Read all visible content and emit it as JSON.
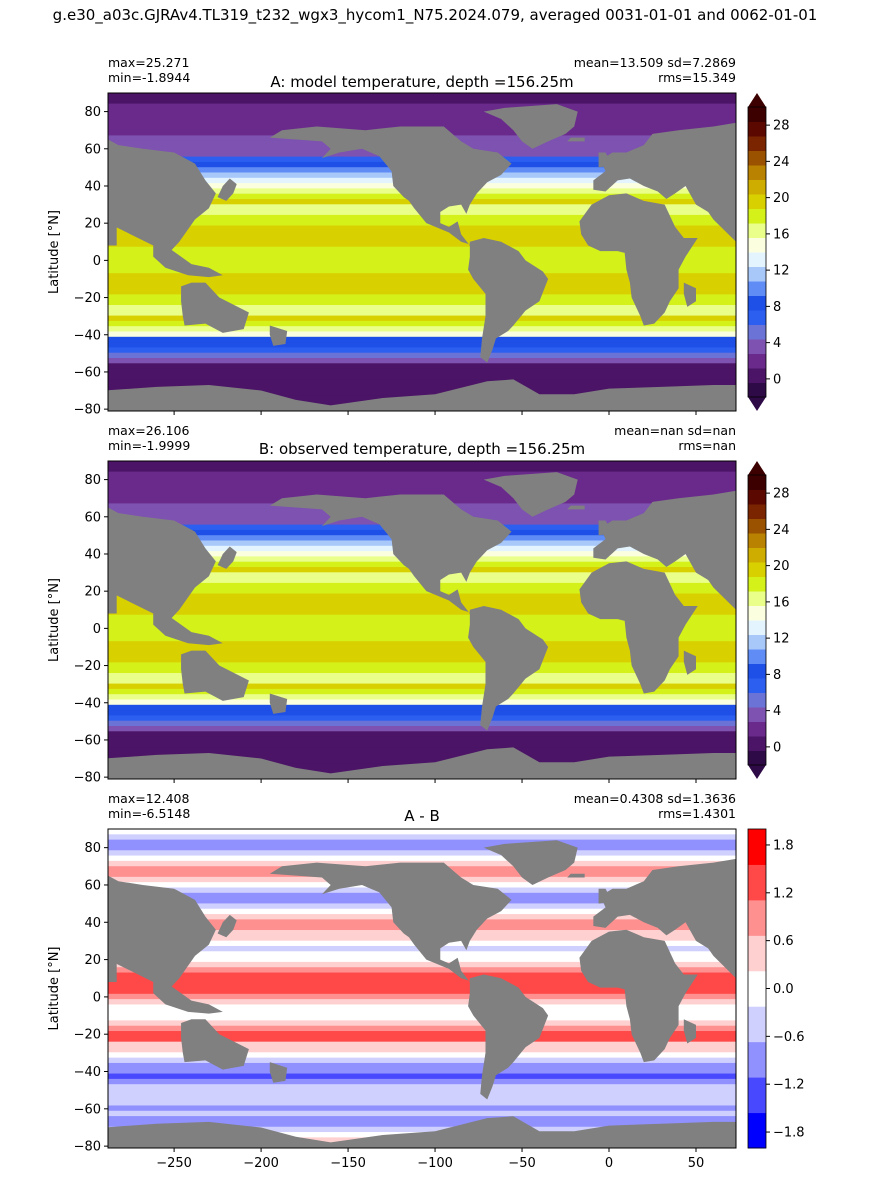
{
  "figure": {
    "suptitle": "g.e30_a03c.GJRAv4.TL319_t232_wgx3_hycom1_N75.2024.079, averaged 0031-01-01 and 0062-01-01"
  },
  "colors": {
    "land": "#808080",
    "temp_colormap": [
      "#2e0b47",
      "#4b1466",
      "#6a2a8c",
      "#7d52b0",
      "#6b74d6",
      "#2c5ff0",
      "#1e4fe6",
      "#5f8cf5",
      "#a8c8fa",
      "#e4f4ff",
      "#fbffe0",
      "#e9ff8a",
      "#d4f21a",
      "#d9d000",
      "#cfad00",
      "#b98200",
      "#9a5200",
      "#7a2400",
      "#5a0800",
      "#3c0000"
    ],
    "diff_colormap": [
      "#0000ff",
      "#4848ff",
      "#9090ff",
      "#d0d0ff",
      "#ffffff",
      "#ffd0d0",
      "#ff9090",
      "#ff4848",
      "#ff0000"
    ]
  },
  "chart_data": [
    {
      "type": "heatmap",
      "title": "A: model temperature, depth =156.25m",
      "ylabel": "Latitude [°N]",
      "xlim": [
        -288,
        73
      ],
      "ylim": [
        -81,
        90
      ],
      "yticks": [
        -80,
        -60,
        -40,
        -20,
        0,
        20,
        40,
        60,
        80
      ],
      "xticks": [
        -250,
        -200,
        -150,
        -100,
        -50,
        0,
        50
      ],
      "stats_left": [
        "max=25.271",
        "min=-1.8944"
      ],
      "stats_right": [
        "mean=13.509 sd=7.2869",
        "rms=15.349"
      ],
      "colorbar": {
        "min": -2,
        "max": 30,
        "ticks": [
          0,
          4,
          8,
          12,
          16,
          20,
          24,
          28
        ],
        "extend": "both"
      }
    },
    {
      "type": "heatmap",
      "title": "B: observed temperature, depth =156.25m",
      "ylabel": "Latitude [°N]",
      "xlim": [
        -288,
        73
      ],
      "ylim": [
        -81,
        90
      ],
      "yticks": [
        -80,
        -60,
        -40,
        -20,
        0,
        20,
        40,
        60,
        80
      ],
      "xticks": [
        -250,
        -200,
        -150,
        -100,
        -50,
        0,
        50
      ],
      "stats_left": [
        "max=26.106",
        "min=-1.9999"
      ],
      "stats_right": [
        "mean=nan sd=nan",
        "rms=nan"
      ],
      "colorbar": {
        "min": -2,
        "max": 30,
        "ticks": [
          0,
          4,
          8,
          12,
          16,
          20,
          24,
          28
        ],
        "extend": "both"
      }
    },
    {
      "type": "heatmap",
      "title": "A - B",
      "ylabel": "Latitude [°N]",
      "xlim": [
        -288,
        73
      ],
      "ylim": [
        -81,
        90
      ],
      "yticks": [
        -80,
        -60,
        -40,
        -20,
        0,
        20,
        40,
        60,
        80
      ],
      "xticks": [
        -250,
        -200,
        -150,
        -100,
        -50,
        0,
        50
      ],
      "xticklabels": [
        "−250",
        "−200",
        "−150",
        "−100",
        "−50",
        "0",
        "50"
      ],
      "stats_left": [
        "max=12.408",
        "min=-6.5148"
      ],
      "stats_right": [
        "mean=0.4308 sd=1.3636",
        "rms=1.4301"
      ],
      "colorbar": {
        "min": -2,
        "max": 2,
        "ticks": [
          -1.8,
          -1.2,
          -0.6,
          0.0,
          0.6,
          1.2,
          1.8
        ],
        "extend": "neither"
      }
    }
  ]
}
